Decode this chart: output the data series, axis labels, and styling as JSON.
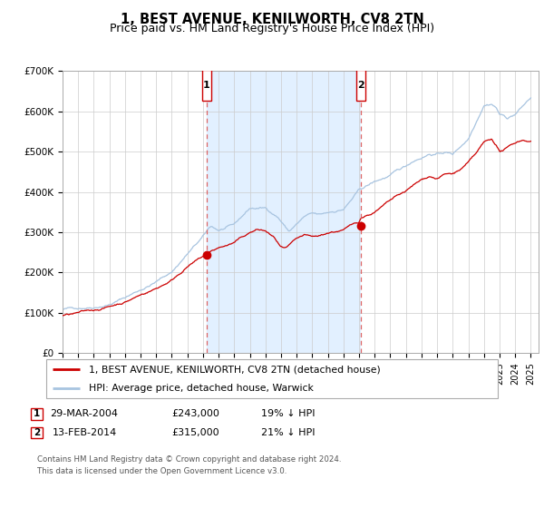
{
  "title": "1, BEST AVENUE, KENILWORTH, CV8 2TN",
  "subtitle": "Price paid vs. HM Land Registry's House Price Index (HPI)",
  "ylim": [
    0,
    700000
  ],
  "xlim_start": 1995.0,
  "xlim_end": 2025.5,
  "yticks": [
    0,
    100000,
    200000,
    300000,
    400000,
    500000,
    600000,
    700000
  ],
  "ytick_labels": [
    "£0",
    "£100K",
    "£200K",
    "£300K",
    "£400K",
    "£500K",
    "£600K",
    "£700K"
  ],
  "xticks": [
    1995,
    1996,
    1997,
    1998,
    1999,
    2000,
    2001,
    2002,
    2003,
    2004,
    2005,
    2006,
    2007,
    2008,
    2009,
    2010,
    2011,
    2012,
    2013,
    2014,
    2015,
    2016,
    2017,
    2018,
    2019,
    2020,
    2021,
    2022,
    2023,
    2024,
    2025
  ],
  "hpi_color": "#a8c4e0",
  "price_color": "#cc0000",
  "marker_color": "#cc0000",
  "shade_color": "#ddeeff",
  "vline_color": "#dd6666",
  "grid_color": "#cccccc",
  "sale1_x": 2004.23,
  "sale1_y": 243000,
  "sale2_x": 2014.12,
  "sale2_y": 315000,
  "legend_label_red": "1, BEST AVENUE, KENILWORTH, CV8 2TN (detached house)",
  "legend_label_blue": "HPI: Average price, detached house, Warwick",
  "table_row1": [
    "1",
    "29-MAR-2004",
    "£243,000",
    "19% ↓ HPI"
  ],
  "table_row2": [
    "2",
    "13-FEB-2014",
    "£315,000",
    "21% ↓ HPI"
  ],
  "footnote1": "Contains HM Land Registry data © Crown copyright and database right 2024.",
  "footnote2": "This data is licensed under the Open Government Licence v3.0."
}
